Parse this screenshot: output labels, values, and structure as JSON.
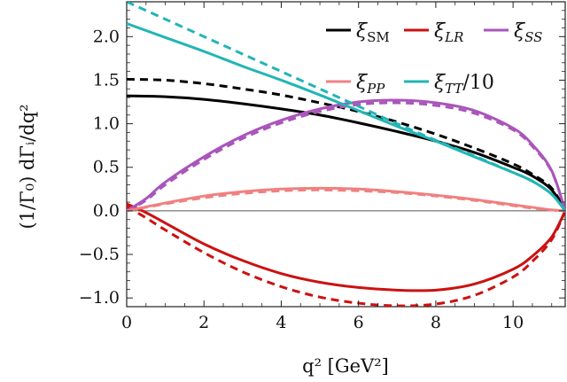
{
  "chart_data": {
    "type": "line",
    "xlabel": "q² [GeV²]",
    "ylabel": "(1/Γ₀) dΓᵢ/dq²",
    "xlim": [
      0,
      11.35
    ],
    "ylim": [
      -1.1,
      2.4
    ],
    "x_ticks": [
      0,
      2,
      4,
      6,
      8,
      10
    ],
    "y_ticks": [
      -1.0,
      -0.5,
      0.0,
      0.5,
      1.0,
      1.5,
      2.0
    ],
    "x_tick_labels": [
      "0",
      "2",
      "4",
      "6",
      "8",
      "10"
    ],
    "y_tick_labels": [
      "−1.0",
      "−0.5",
      "0.0",
      "0.5",
      "1.0",
      "1.5",
      "2.0"
    ],
    "legend_position": "top-right",
    "legend": [
      {
        "symbol": "ξ",
        "subscript": "SM",
        "color": "#000000"
      },
      {
        "symbol": "ξ",
        "subscript": "LR",
        "color": "#cc1111"
      },
      {
        "symbol": "ξ",
        "subscript": "SS",
        "color": "#aa55bb"
      },
      {
        "symbol": "ξ",
        "subscript": "PP",
        "color": "#f08080"
      },
      {
        "symbol": "ξ",
        "subscript": "TT",
        "suffix": "/10",
        "color": "#22b5b5"
      }
    ],
    "series": [
      {
        "name": "ξ_SM",
        "style": "solid",
        "color": "#000000",
        "x": [
          0,
          1,
          2,
          3,
          4,
          5,
          6,
          7,
          8,
          9,
          10,
          10.5,
          11,
          11.35
        ],
        "y": [
          1.32,
          1.31,
          1.28,
          1.23,
          1.17,
          1.1,
          1.01,
          0.91,
          0.8,
          0.67,
          0.5,
          0.4,
          0.24,
          0.0
        ]
      },
      {
        "name": "ξ_SM (dashed)",
        "style": "dashed",
        "color": "#000000",
        "x": [
          0,
          1,
          2,
          3,
          4,
          5,
          6,
          7,
          8,
          9,
          10,
          10.5,
          11,
          11.35
        ],
        "y": [
          1.51,
          1.5,
          1.46,
          1.4,
          1.33,
          1.24,
          1.14,
          1.02,
          0.88,
          0.72,
          0.54,
          0.42,
          0.26,
          0.0
        ]
      },
      {
        "name": "ξ_LR",
        "style": "solid",
        "color": "#cc1111",
        "x": [
          0,
          0.5,
          1,
          2,
          3,
          4,
          5,
          6,
          7,
          8,
          9,
          10,
          10.5,
          11,
          11.35
        ],
        "y": [
          0.08,
          -0.02,
          -0.14,
          -0.38,
          -0.57,
          -0.72,
          -0.82,
          -0.88,
          -0.91,
          -0.91,
          -0.84,
          -0.67,
          -0.52,
          -0.3,
          0.0
        ]
      },
      {
        "name": "ξ_LR (dashed)",
        "style": "dashed",
        "color": "#cc1111",
        "x": [
          0,
          0.5,
          1,
          2,
          3,
          4,
          5,
          6,
          7,
          8,
          9,
          10,
          10.5,
          11,
          11.35
        ],
        "y": [
          0.05,
          -0.08,
          -0.22,
          -0.48,
          -0.7,
          -0.87,
          -0.99,
          -1.06,
          -1.09,
          -1.07,
          -0.97,
          -0.76,
          -0.58,
          -0.33,
          0.0
        ]
      },
      {
        "name": "ξ_SS",
        "style": "solid",
        "color": "#aa55bb",
        "x": [
          0,
          0.5,
          1,
          2,
          3,
          4,
          5,
          6,
          7,
          8,
          9,
          10,
          10.5,
          11,
          11.35
        ],
        "y": [
          0.0,
          0.14,
          0.33,
          0.62,
          0.86,
          1.04,
          1.17,
          1.25,
          1.27,
          1.24,
          1.15,
          0.95,
          0.76,
          0.46,
          0.0
        ]
      },
      {
        "name": "ξ_SS (dashed)",
        "style": "dashed",
        "color": "#aa55bb",
        "x": [
          0,
          0.5,
          1,
          2,
          3,
          4,
          5,
          6,
          7,
          8,
          9,
          10,
          10.5,
          11,
          11.35
        ],
        "y": [
          0.0,
          0.12,
          0.3,
          0.59,
          0.83,
          1.01,
          1.14,
          1.22,
          1.24,
          1.21,
          1.12,
          0.93,
          0.74,
          0.45,
          0.0
        ]
      },
      {
        "name": "ξ_PP",
        "style": "solid",
        "color": "#f08080",
        "x": [
          0,
          1,
          2,
          3,
          4,
          5,
          6,
          7,
          8,
          9,
          10,
          10.5,
          11,
          11.35
        ],
        "y": [
          0.0,
          0.09,
          0.17,
          0.22,
          0.25,
          0.26,
          0.25,
          0.22,
          0.18,
          0.13,
          0.07,
          0.04,
          0.01,
          0.0
        ]
      },
      {
        "name": "ξ_PP (dashed)",
        "style": "dashed",
        "color": "#f08080",
        "x": [
          0,
          1,
          2,
          3,
          4,
          5,
          6,
          7,
          8,
          9,
          10,
          10.5,
          11,
          11.35
        ],
        "y": [
          0.0,
          0.08,
          0.15,
          0.2,
          0.23,
          0.24,
          0.23,
          0.21,
          0.17,
          0.12,
          0.06,
          0.03,
          0.01,
          0.0
        ]
      },
      {
        "name": "ξ_TT/10",
        "style": "solid",
        "color": "#22b5b5",
        "x": [
          0,
          1,
          2,
          3,
          4,
          5,
          6,
          7,
          8,
          9,
          10,
          10.5,
          11,
          11.35
        ],
        "y": [
          2.15,
          1.99,
          1.83,
          1.66,
          1.5,
          1.33,
          1.15,
          0.97,
          0.8,
          0.62,
          0.44,
          0.34,
          0.19,
          0.0
        ]
      },
      {
        "name": "ξ_TT/10 (dashed)",
        "style": "dashed",
        "color": "#22b5b5",
        "x": [
          0,
          1,
          2,
          3,
          4,
          5,
          6,
          7,
          8,
          9,
          10,
          10.5,
          11,
          11.35
        ],
        "y": [
          2.4,
          2.2,
          2.0,
          1.8,
          1.6,
          1.4,
          1.2,
          1.0,
          0.81,
          0.63,
          0.44,
          0.34,
          0.19,
          0.0
        ]
      }
    ]
  }
}
